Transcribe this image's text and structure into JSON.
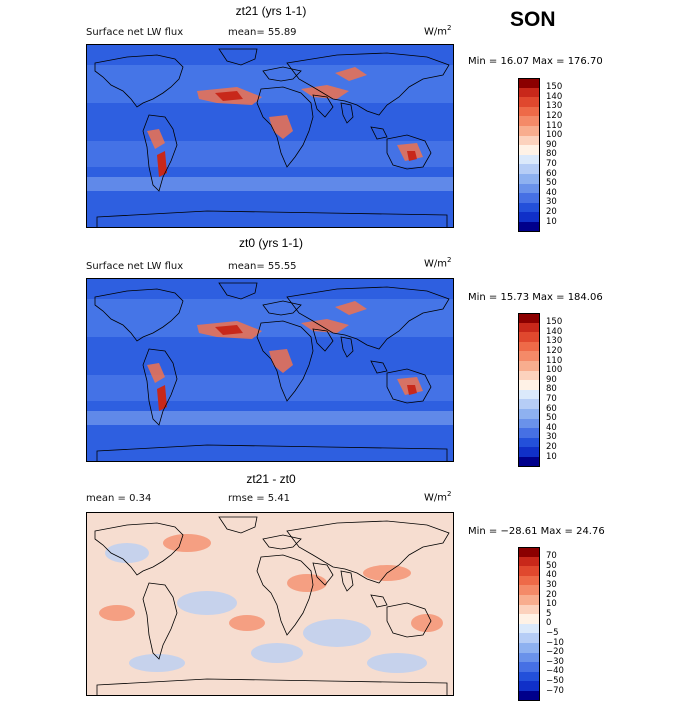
{
  "season": "SON",
  "panels": [
    {
      "title": "zt21 (yrs 1-1)",
      "left_label": "Surface net LW flux",
      "right_label": "mean=  55.89",
      "units": "W/m",
      "units_exp": "2",
      "minmax": "Min =  16.07 Max = 176.70",
      "colorbar": {
        "labels": [
          "150",
          "140",
          "130",
          "120",
          "110",
          "100",
          "90",
          "80",
          "70",
          "60",
          "50",
          "40",
          "30",
          "20",
          "10"
        ],
        "colors": [
          "#8b0000",
          "#c8281a",
          "#e0482e",
          "#ee6a48",
          "#f48a68",
          "#f8ad8e",
          "#fcd2bd",
          "#fff2e6",
          "#dbe9fb",
          "#b6cdf6",
          "#8eb1f0",
          "#6a92ea",
          "#4670e4",
          "#2350da",
          "#1030c8",
          "#00008b"
        ]
      }
    },
    {
      "title": "zt0 (yrs 1-1)",
      "left_label": "Surface net LW flux",
      "right_label": "mean=  55.55",
      "units": "W/m",
      "units_exp": "2",
      "minmax": "Min =  15.73 Max = 184.06",
      "colorbar": {
        "labels": [
          "150",
          "140",
          "130",
          "120",
          "110",
          "100",
          "90",
          "80",
          "70",
          "60",
          "50",
          "40",
          "30",
          "20",
          "10"
        ],
        "colors": [
          "#8b0000",
          "#c8281a",
          "#e0482e",
          "#ee6a48",
          "#f48a68",
          "#f8ad8e",
          "#fcd2bd",
          "#fff2e6",
          "#dbe9fb",
          "#b6cdf6",
          "#8eb1f0",
          "#6a92ea",
          "#4670e4",
          "#2350da",
          "#1030c8",
          "#00008b"
        ]
      }
    },
    {
      "title": "zt21 - zt0",
      "left_label": "mean =   0.34",
      "right_label": "rmse =   5.41",
      "units": "W/m",
      "units_exp": "2",
      "minmax": "Min = −28.61 Max =  24.76",
      "colorbar": {
        "labels": [
          "70",
          "50",
          "40",
          "30",
          "20",
          "10",
          "5",
          "0",
          "−5",
          "−10",
          "−20",
          "−30",
          "−40",
          "−50",
          "−70"
        ],
        "colors": [
          "#8b0000",
          "#c8281a",
          "#e0482e",
          "#ee6a48",
          "#f48a68",
          "#f8ad8e",
          "#fcd2bd",
          "#fff2e6",
          "#dbe9fb",
          "#b6cdf6",
          "#8eb1f0",
          "#6a92ea",
          "#4670e4",
          "#2350da",
          "#1030c8",
          "#00008b"
        ]
      }
    }
  ],
  "map_palette": {
    "ocean_low": "#2e5fe0",
    "ocean_mid": "#5a86ec",
    "ocean_light": "#9ebcf4",
    "warm": "#f0724d",
    "hot": "#c8281a",
    "diff_bg": "#f6ddd0",
    "diff_cool": "#b6cdf6",
    "diff_warm": "#f48a68",
    "coast": "#000000"
  }
}
